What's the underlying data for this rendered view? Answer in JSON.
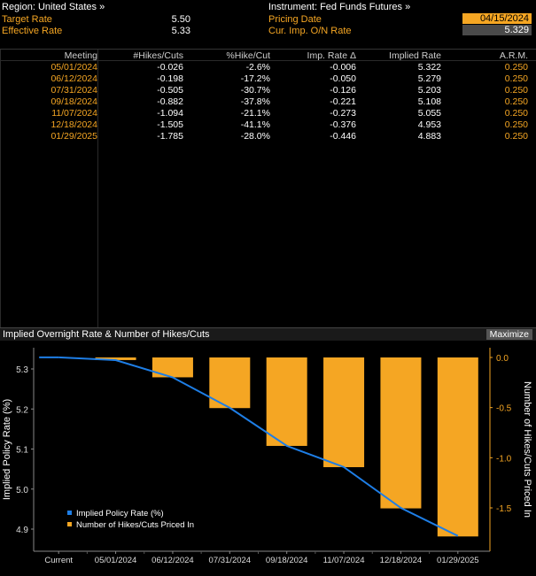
{
  "header": {
    "region_label": "Region: United States »",
    "instrument_label": "Instrument: Fed Funds Futures »",
    "target_rate_label": "Target Rate",
    "target_rate_value": "5.50",
    "effective_rate_label": "Effective Rate",
    "effective_rate_value": "5.33",
    "pricing_date_label": "Pricing Date",
    "pricing_date_value": "04/15/2024",
    "cur_imp_label": "Cur. Imp. O/N Rate",
    "cur_imp_value": "5.329"
  },
  "table": {
    "columns": [
      "Meeting",
      "#Hikes/Cuts",
      "%Hike/Cut",
      "Imp. Rate Δ",
      "Implied Rate",
      "A.R.M."
    ],
    "rows": [
      [
        "05/01/2024",
        "-0.026",
        "-2.6%",
        "-0.006",
        "5.322",
        "0.250"
      ],
      [
        "06/12/2024",
        "-0.198",
        "-17.2%",
        "-0.050",
        "5.279",
        "0.250"
      ],
      [
        "07/31/2024",
        "-0.505",
        "-30.7%",
        "-0.126",
        "5.203",
        "0.250"
      ],
      [
        "09/18/2024",
        "-0.882",
        "-37.8%",
        "-0.221",
        "5.108",
        "0.250"
      ],
      [
        "11/07/2024",
        "-1.094",
        "-21.1%",
        "-0.273",
        "5.055",
        "0.250"
      ],
      [
        "12/18/2024",
        "-1.505",
        "-41.1%",
        "-0.376",
        "4.953",
        "0.250"
      ],
      [
        "01/29/2025",
        "-1.785",
        "-28.0%",
        "-0.446",
        "4.883",
        "0.250"
      ]
    ]
  },
  "chart_panel": {
    "title": "Implied Overnight Rate & Number of Hikes/Cuts",
    "maximize_label": "Maximize"
  },
  "chart_data": {
    "type": "bar",
    "categories": [
      "Current",
      "05/01/2024",
      "06/12/2024",
      "07/31/2024",
      "09/18/2024",
      "11/07/2024",
      "12/18/2024",
      "01/29/2025"
    ],
    "series": [
      {
        "name": "Implied Policy Rate (%)",
        "type": "line",
        "axis": "left",
        "color": "#1e7ee6",
        "values": [
          5.329,
          5.322,
          5.279,
          5.203,
          5.108,
          5.055,
          4.953,
          4.883
        ]
      },
      {
        "name": "Number of Hikes/Cuts Priced In",
        "type": "bar",
        "axis": "right",
        "color": "#f5a623",
        "values": [
          null,
          -0.026,
          -0.198,
          -0.505,
          -0.882,
          -1.094,
          -1.505,
          -1.785
        ]
      }
    ],
    "ylabel_left": "Implied Policy Rate (%)",
    "ylabel_right": "Number of Hikes/Cuts Priced In",
    "yticks_left": [
      "5.3",
      "5.2",
      "5.1",
      "5.0",
      "4.9"
    ],
    "yticks_right": [
      "0.0",
      "-0.5",
      "-1.0",
      "-1.5"
    ],
    "ylim_left": [
      4.87,
      5.36
    ],
    "ylim_right": [
      -1.785,
      0.0
    ],
    "legend_position": "bottom-left",
    "grid": false
  }
}
